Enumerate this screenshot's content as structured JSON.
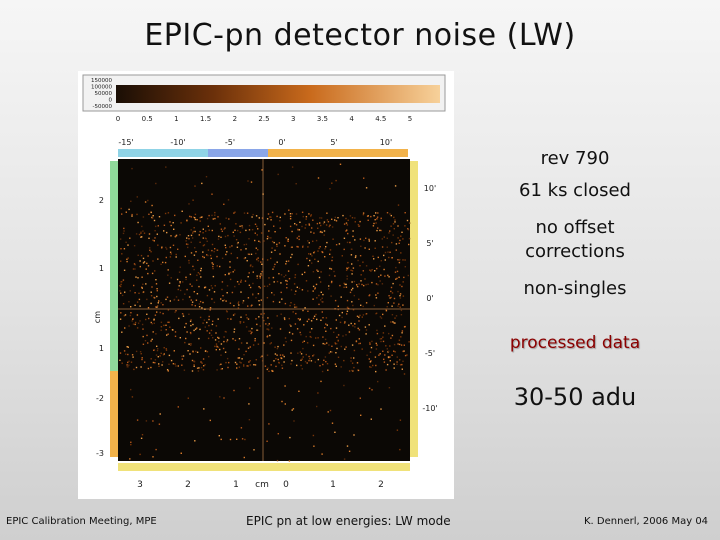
{
  "slide": {
    "title": "EPIC-pn detector noise  (LW)",
    "notes": [
      "rev 790",
      "61 ks closed",
      "no offset corrections",
      "non-singles",
      "processed data",
      "30-50 adu"
    ],
    "footer_left": "EPIC Calibration Meeting, MPE",
    "footer_center": "EPIC pn at low energies: LW mode",
    "footer_right": "K. Dennerl, 2006 May 04"
  },
  "figure": {
    "colorbar_labels": [
      "150000",
      "100000",
      "50000",
      "0",
      "-50000"
    ],
    "colorbar_ticks": [
      "0",
      "0.5",
      "1",
      "1.5",
      "2",
      "2.5",
      "3",
      "3.5",
      "4",
      "4.5",
      "5"
    ],
    "top_axis_ticks": [
      "-15'",
      "-10'",
      "-5'",
      "0'",
      "5'",
      "10'"
    ],
    "bottom_axis_ticks": [
      "3",
      "2",
      "1",
      "cm",
      "0",
      "1",
      "2"
    ],
    "left_axis_ticks": [
      "2",
      "1",
      "cm",
      "1",
      "-2",
      "-3"
    ],
    "right_axis_ticks": [
      "10'",
      "5'",
      "0'",
      "-5'",
      "-10'"
    ],
    "colors": {
      "ccd_top_cyan": "#8fd3e6",
      "ccd_top_blue": "#8aa6e8",
      "ccd_top_orange": "#f2b24a",
      "ccd_bottom_yellow": "#f0e27a",
      "ccd_left_green": "#8fd99a",
      "ccd_left_orange": "#f2b24a",
      "ccd_right_yellow": "#f0e27a",
      "image_bg": "#0b0805",
      "noise": "#c15d12"
    }
  }
}
